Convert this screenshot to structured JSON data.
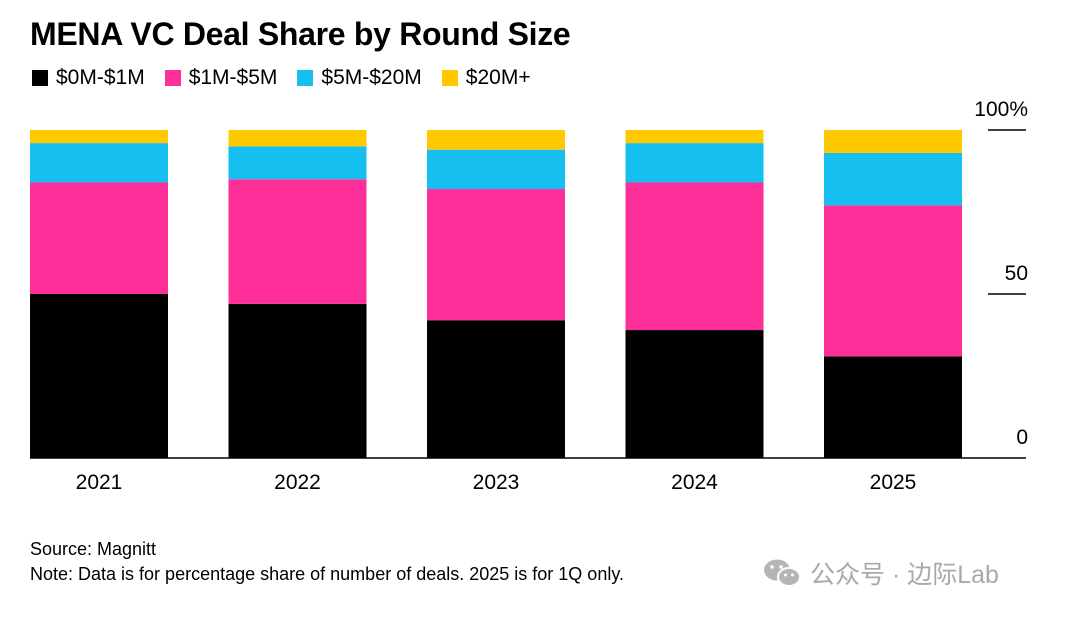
{
  "chart_data": {
    "type": "bar",
    "stacked": true,
    "title": "MENA VC Deal Share by Round Size",
    "categories": [
      "2021",
      "2022",
      "2023",
      "2024",
      "2025"
    ],
    "series": [
      {
        "name": "$0M-$1M",
        "color": "#000000",
        "values": [
          50,
          47,
          42,
          39,
          31
        ]
      },
      {
        "name": "$1M-$5M",
        "color": "#ff2f9a",
        "values": [
          34,
          38,
          40,
          45,
          46
        ]
      },
      {
        "name": "$5M-$20M",
        "color": "#16bff0",
        "values": [
          12,
          10,
          12,
          12,
          16
        ]
      },
      {
        "name": "$20M+",
        "color": "#ffc900",
        "values": [
          4,
          5,
          6,
          4,
          7
        ]
      }
    ],
    "ylim": [
      0,
      100
    ],
    "y_ticks": [
      "0",
      "50",
      "100%"
    ],
    "y_axis_side": "right",
    "legend_position": "top-left",
    "xlabel": "",
    "ylabel": ""
  },
  "footer": {
    "source": "Source: Magnitt",
    "note": "Note: Data is for percentage share of number of deals. 2025 is for 1Q only."
  },
  "watermark": {
    "text": "公众号 · 边际Lab",
    "icon": "wechat-icon"
  }
}
